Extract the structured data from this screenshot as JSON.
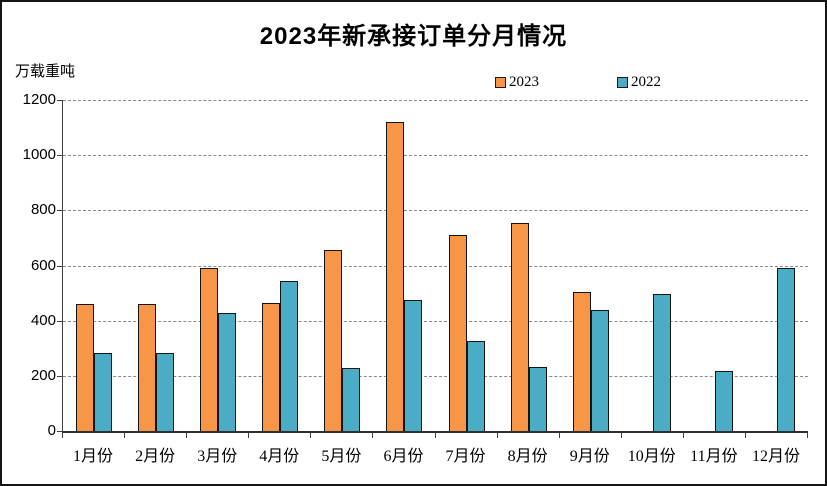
{
  "title": "2023年新承接订单分月情况",
  "y_axis_unit": "万载重吨",
  "y_ticks": [
    1200,
    1000,
    800,
    600,
    400,
    200,
    0
  ],
  "legend": [
    {
      "label": "2023",
      "color": "#F79646"
    },
    {
      "label": "2022",
      "color": "#4BACC6"
    }
  ],
  "colors": {
    "bar_2023": "#F79646",
    "bar_2022": "#4BACC6",
    "bar_border": "#141414",
    "gridline": "#8a8a8a",
    "axis": "#303030"
  },
  "chart_data": {
    "type": "bar",
    "title": "2023年新承接订单分月情况",
    "xlabel": "",
    "ylabel": "万载重吨",
    "ylim": [
      0,
      1200
    ],
    "ytick_step": 200,
    "grid": "horizontal-dashed",
    "legend_position": "top-center",
    "categories": [
      "1月份",
      "2月份",
      "3月份",
      "4月份",
      "5月份",
      "6月份",
      "7月份",
      "8月份",
      "9月份",
      "10月份",
      "11月份",
      "12月份"
    ],
    "series": [
      {
        "name": "2023",
        "color": "#F79646",
        "values": [
          460,
          462,
          590,
          465,
          658,
          1120,
          710,
          755,
          503,
          null,
          null,
          null
        ]
      },
      {
        "name": "2022",
        "color": "#4BACC6",
        "values": [
          283,
          283,
          428,
          545,
          228,
          475,
          327,
          232,
          440,
          495,
          218,
          590
        ]
      }
    ]
  }
}
